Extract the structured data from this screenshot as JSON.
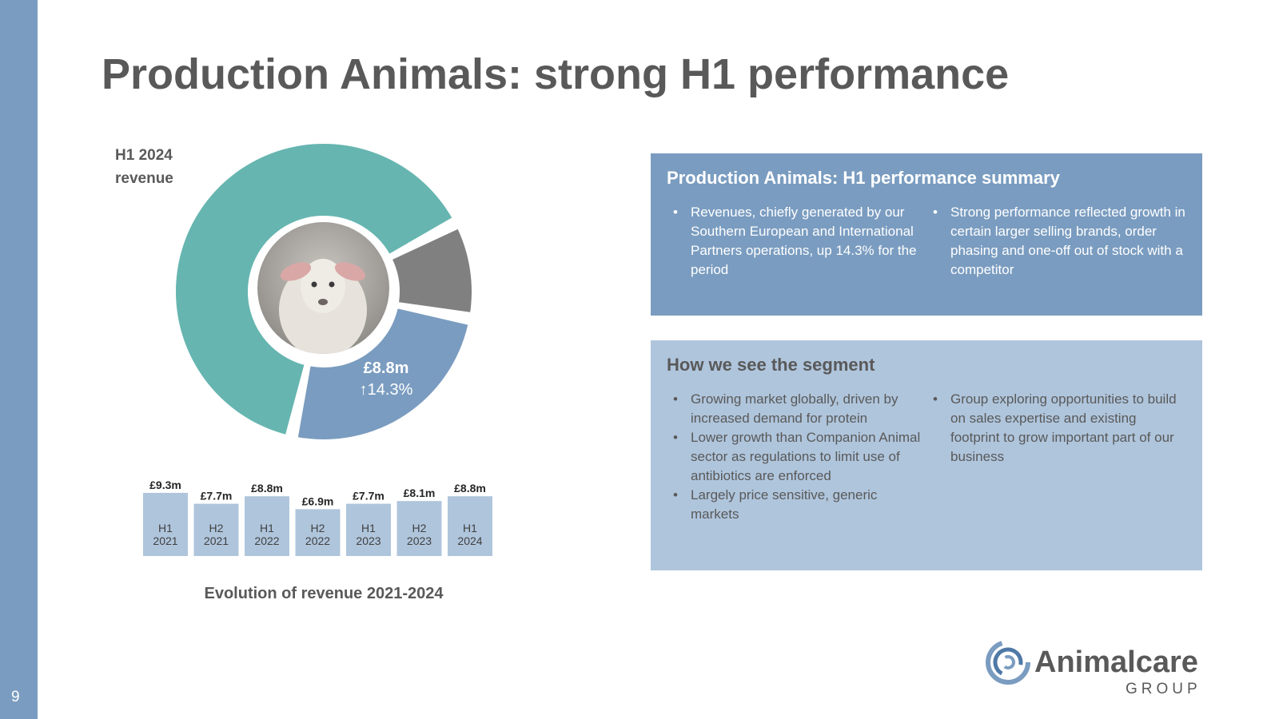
{
  "slide": {
    "page_number": "9",
    "title": "Production Animals: strong H1 performance"
  },
  "donut": {
    "label": "H1 2024 revenue",
    "value": "£8.8m",
    "change": "↑14.3%",
    "colors": [
      "#7a9cc0",
      "#808080",
      "#66b5b0"
    ]
  },
  "chart_data": {
    "type": "bar",
    "categories": [
      "H1 2021",
      "H2 2021",
      "H1 2022",
      "H2 2022",
      "H1 2023",
      "H2 2023",
      "H1 2024"
    ],
    "values": [
      9.3,
      7.7,
      8.8,
      6.9,
      7.7,
      8.1,
      8.8
    ],
    "value_labels": [
      "£9.3m",
      "£7.7m",
      "£8.8m",
      "£6.9m",
      "£7.7m",
      "£8.1m",
      "£8.8m"
    ],
    "title": "Evolution of revenue 2021-2024",
    "xlabel": "",
    "ylabel": "",
    "color": "#afc5dc"
  },
  "summary": {
    "heading": "Production Animals: H1 performance summary",
    "left": [
      "Revenues, chiefly generated by our Southern European and International Partners operations, up 14.3% for the period"
    ],
    "right": [
      "Strong performance reflected growth in certain larger selling brands, order phasing and one-off out of stock with a competitor"
    ]
  },
  "segment": {
    "heading": "How we see the segment",
    "left": [
      "Growing market globally, driven by increased demand for protein",
      "Lower growth than Companion Animal sector as regulations to limit use of antibiotics are enforced",
      "Largely price sensitive, generic markets"
    ],
    "right": [
      "Group exploring opportunities to build on sales expertise and existing footprint to grow important part of our business"
    ]
  },
  "logo": {
    "name": "Animalcare",
    "sub": "GROUP",
    "icon": "swirl-logo-icon"
  }
}
